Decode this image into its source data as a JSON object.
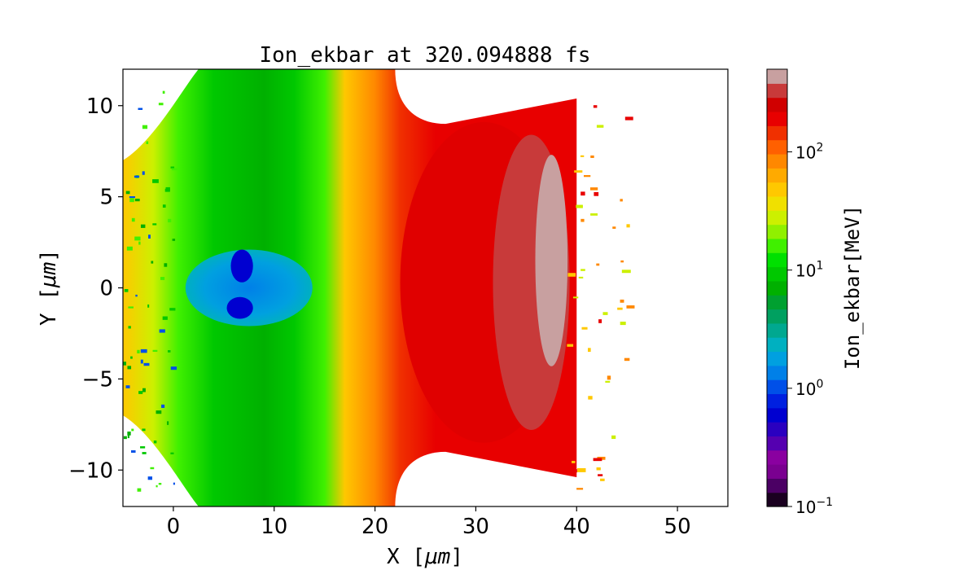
{
  "chart_data": {
    "type": "heatmap",
    "title": "Ion_ekbar at 320.094888 fs",
    "xlabel": "X  [$\\mu m$]",
    "xlabel_parts": {
      "prefix": "X  [",
      "mu": "μ",
      "unit": "m",
      "suffix": "]"
    },
    "ylabel_parts": {
      "prefix": "Y  [",
      "mu": "μ",
      "unit": "m",
      "suffix": "]"
    },
    "xlim": [
      -5,
      55
    ],
    "ylim": [
      -12,
      12
    ],
    "xticks": [
      0,
      10,
      20,
      30,
      40,
      50
    ],
    "xtick_labels": [
      "0",
      "10",
      "20",
      "30",
      "40",
      "50"
    ],
    "yticks": [
      10,
      5,
      0,
      -5,
      -10
    ],
    "ytick_labels": [
      "10",
      "5",
      "0",
      "−5",
      "−10"
    ],
    "colorbar": {
      "label": "Ion_ekbar[MeV]",
      "scale": "log",
      "range": [
        0.1,
        500
      ],
      "ticks": [
        {
          "base": "10",
          "exp": "2",
          "value": 100
        },
        {
          "base": "10",
          "exp": "1",
          "value": 10
        },
        {
          "base": "10",
          "exp": "0",
          "value": 1
        },
        {
          "base": "10",
          "exp": "−1",
          "value": 0.1
        }
      ],
      "levels": [
        "#1a0020",
        "#4b0064",
        "#7a0090",
        "#8a00a0",
        "#5500b0",
        "#2a00c0",
        "#0000d0",
        "#0020e0",
        "#0050e8",
        "#0080e8",
        "#00a0e0",
        "#00b0c0",
        "#00a890",
        "#00a060",
        "#00a030",
        "#00b000",
        "#00c800",
        "#00e000",
        "#40f000",
        "#90f000",
        "#ccf000",
        "#f0e000",
        "#ffc800",
        "#ffaa00",
        "#ff8800",
        "#ff6000",
        "#f03000",
        "#e80000",
        "#d00000",
        "#c83a3a",
        "#c8a0a0"
      ]
    },
    "regions": [
      {
        "kind": "ellipse",
        "cx": 30.8,
        "cy": 0.3,
        "rx": 8.3,
        "ry": 8.8,
        "color": "#e00000"
      },
      {
        "kind": "ellipse",
        "cx": 35.5,
        "cy": 0.3,
        "rx": 3.8,
        "ry": 8.1,
        "color": "#c83a3a"
      },
      {
        "kind": "ellipse",
        "cx": 37.5,
        "cy": 1.5,
        "rx": 1.6,
        "ry": 5.8,
        "color": "#c8a0a0"
      },
      {
        "kind": "ellipse",
        "cx": 7.5,
        "cy": 0.0,
        "rx": 6.3,
        "ry": 2.1,
        "color": "#0080e8"
      },
      {
        "kind": "ellipse",
        "cx": 6.8,
        "cy": 1.2,
        "rx": 1.1,
        "ry": 0.9,
        "color": "#0000d0"
      },
      {
        "kind": "ellipse",
        "cx": 6.6,
        "cy": -1.1,
        "rx": 1.3,
        "ry": 0.6,
        "color": "#0000d0"
      }
    ]
  }
}
